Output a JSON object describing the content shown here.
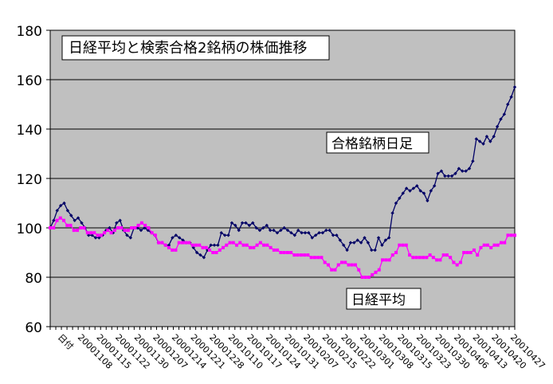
{
  "chart_data": {
    "type": "line",
    "title": "日経平均と検索合格2銘柄の株価推移",
    "ylim": [
      60,
      180
    ],
    "yticks": [
      60,
      80,
      100,
      120,
      140,
      160,
      180
    ],
    "grid": true,
    "first_category": "日付",
    "x_tick_labels": [
      "20001108",
      "20001115",
      "20001122",
      "20001130",
      "20001207",
      "20001214",
      "20001221",
      "20001228",
      "20010110",
      "20010117",
      "20010124",
      "20010131",
      "20010207",
      "20010215",
      "20010222",
      "20010301",
      "20010308",
      "20010315",
      "20010323",
      "20010330",
      "20010406",
      "20010413",
      "20010420",
      "20010427"
    ],
    "colors": {
      "plot_background": "#c0c0c0",
      "series_1": "#000066",
      "series_2": "#ff00ff"
    },
    "series": [
      {
        "name": "合格銘柄日足",
        "values": [
          100,
          103,
          107,
          109,
          110,
          107,
          105,
          103,
          104,
          102,
          100,
          97,
          97,
          96,
          96,
          97,
          99,
          100,
          98,
          102,
          103,
          99,
          97,
          96,
          100,
          100,
          99,
          100,
          99,
          98,
          97,
          94,
          94,
          93,
          93,
          96,
          97,
          96,
          95,
          94,
          94,
          92,
          90,
          89,
          88,
          91,
          93,
          93,
          93,
          98,
          97,
          97,
          102,
          101,
          99,
          102,
          102,
          101,
          102,
          100,
          99,
          100,
          101,
          99,
          99,
          98,
          99,
          100,
          99,
          98,
          97,
          99,
          98,
          98,
          98,
          96,
          97,
          98,
          98,
          99,
          99,
          97,
          97,
          95,
          93,
          91,
          94,
          94,
          95,
          94,
          96,
          94,
          91,
          91,
          96,
          93,
          95,
          96,
          106,
          110,
          112,
          114,
          116,
          115,
          116,
          117,
          115,
          114,
          111,
          115,
          117,
          122,
          123,
          121,
          121,
          121,
          122,
          124,
          123,
          123,
          124,
          127,
          136,
          135,
          134,
          137,
          135,
          137,
          141,
          144,
          146,
          150,
          153,
          157
        ]
      },
      {
        "name": "日経平均",
        "values": [
          100,
          100,
          103,
          104,
          103,
          101,
          101,
          99,
          99,
          100,
          100,
          98,
          98,
          98,
          97,
          97,
          98,
          99,
          98,
          99,
          100,
          100,
          99,
          99,
          100,
          100,
          101,
          102,
          101,
          100,
          98,
          97,
          94,
          94,
          93,
          92,
          91,
          91,
          94,
          94,
          94,
          94,
          93,
          93,
          93,
          92,
          92,
          91,
          90,
          90,
          91,
          92,
          93,
          94,
          94,
          93,
          94,
          93,
          93,
          92,
          92,
          93,
          94,
          93,
          93,
          92,
          91,
          91,
          90,
          90,
          90,
          90,
          89,
          89,
          89,
          89,
          89,
          88,
          88,
          88,
          88,
          86,
          85,
          83,
          83,
          85,
          86,
          86,
          85,
          85,
          85,
          83,
          80,
          80,
          80,
          81,
          82,
          83,
          87,
          87,
          87,
          89,
          90,
          93,
          93,
          93,
          89,
          88,
          88,
          88,
          88,
          88,
          89,
          88,
          87,
          87,
          89,
          89,
          88,
          86,
          85,
          86,
          90,
          90,
          90,
          91,
          89,
          92,
          93,
          93,
          92,
          93,
          93,
          94,
          94,
          97,
          97,
          97
        ]
      }
    ]
  },
  "annotations": {
    "title_box": "日経平均と検索合格2銘柄の株価推移",
    "series_1_label": "合格銘柄日足",
    "series_2_label": "日経平均"
  }
}
